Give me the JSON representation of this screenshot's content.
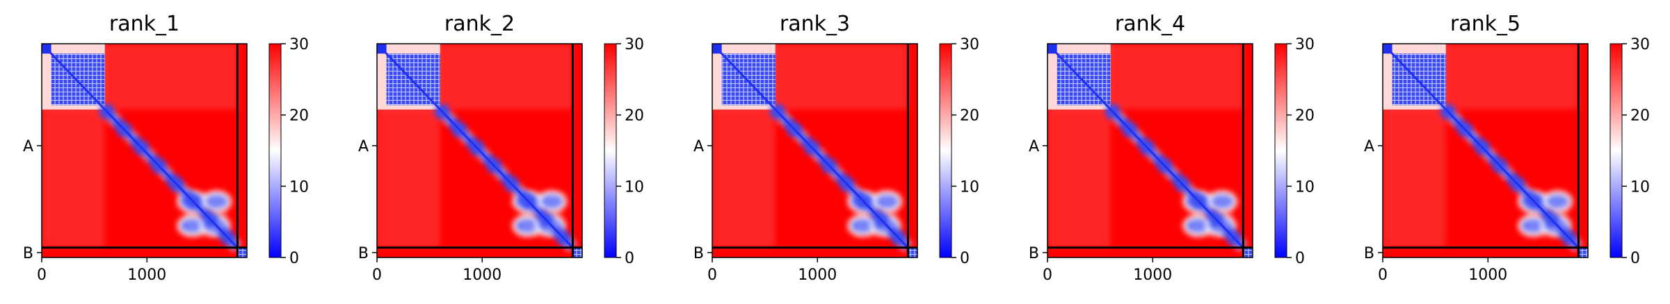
{
  "figure": {
    "colors": {
      "low": "#0000ff",
      "mid": "#ffffff",
      "high": "#ff0000",
      "frame": "#000000",
      "chain_separator": "#000000"
    },
    "colormap": "bwr"
  },
  "chart_data": [
    {
      "type": "heatmap",
      "title": "rank_1",
      "x_ticks": [
        0,
        1000
      ],
      "x_tick_labels": [
        "0",
        "1000"
      ],
      "y_tick_labels": [
        "A",
        "B"
      ],
      "axis_range": [
        0,
        1950
      ],
      "chain_boundary": 1860,
      "chain_label_positions": [
        930,
        1905
      ],
      "colorbar": {
        "ticks": [
          0,
          10,
          20,
          30
        ],
        "tick_labels": [
          "0",
          "10",
          "20",
          "30"
        ],
        "vmin": 0,
        "vmax": 30
      },
      "blocks": [
        {
          "range": [
            0,
            600
          ],
          "value": 6,
          "note": "low-error domain"
        },
        {
          "range": [
            600,
            1850
          ],
          "value": 4,
          "note": "diagonal band"
        },
        {
          "range": [
            1400,
            1750
          ],
          "value": 8,
          "note": "cross-shaped low-error region"
        },
        {
          "range": [
            1860,
            1950
          ],
          "value": 5,
          "note": "chain B self block"
        }
      ]
    },
    {
      "type": "heatmap",
      "title": "rank_2",
      "x_ticks": [
        0,
        1000
      ],
      "x_tick_labels": [
        "0",
        "1000"
      ],
      "y_tick_labels": [
        "A",
        "B"
      ],
      "axis_range": [
        0,
        1950
      ],
      "chain_boundary": 1860,
      "chain_label_positions": [
        930,
        1905
      ],
      "colorbar": {
        "ticks": [
          0,
          10,
          20,
          30
        ],
        "tick_labels": [
          "0",
          "10",
          "20",
          "30"
        ],
        "vmin": 0,
        "vmax": 30
      },
      "blocks": [
        {
          "range": [
            0,
            600
          ],
          "value": 6
        },
        {
          "range": [
            600,
            1850
          ],
          "value": 4
        },
        {
          "range": [
            1400,
            1750
          ],
          "value": 8
        },
        {
          "range": [
            1860,
            1950
          ],
          "value": 5
        }
      ]
    },
    {
      "type": "heatmap",
      "title": "rank_3",
      "x_ticks": [
        0,
        1000
      ],
      "x_tick_labels": [
        "0",
        "1000"
      ],
      "y_tick_labels": [
        "A",
        "B"
      ],
      "axis_range": [
        0,
        1950
      ],
      "chain_boundary": 1860,
      "chain_label_positions": [
        930,
        1905
      ],
      "colorbar": {
        "ticks": [
          0,
          10,
          20,
          30
        ],
        "tick_labels": [
          "0",
          "10",
          "20",
          "30"
        ],
        "vmin": 0,
        "vmax": 30
      },
      "blocks": [
        {
          "range": [
            0,
            600
          ],
          "value": 6
        },
        {
          "range": [
            600,
            1850
          ],
          "value": 4
        },
        {
          "range": [
            1400,
            1750
          ],
          "value": 8
        },
        {
          "range": [
            1860,
            1950
          ],
          "value": 5
        }
      ]
    },
    {
      "type": "heatmap",
      "title": "rank_4",
      "x_ticks": [
        0,
        1000
      ],
      "x_tick_labels": [
        "0",
        "1000"
      ],
      "y_tick_labels": [
        "A",
        "B"
      ],
      "axis_range": [
        0,
        1950
      ],
      "chain_boundary": 1860,
      "chain_label_positions": [
        930,
        1905
      ],
      "colorbar": {
        "ticks": [
          0,
          10,
          20,
          30
        ],
        "tick_labels": [
          "0",
          "10",
          "20",
          "30"
        ],
        "vmin": 0,
        "vmax": 30
      },
      "blocks": [
        {
          "range": [
            0,
            600
          ],
          "value": 6
        },
        {
          "range": [
            600,
            1850
          ],
          "value": 4
        },
        {
          "range": [
            1400,
            1750
          ],
          "value": 8
        },
        {
          "range": [
            1860,
            1950
          ],
          "value": 5
        }
      ]
    },
    {
      "type": "heatmap",
      "title": "rank_5",
      "x_ticks": [
        0,
        1000
      ],
      "x_tick_labels": [
        "0",
        "1000"
      ],
      "y_tick_labels": [
        "A",
        "B"
      ],
      "axis_range": [
        0,
        1950
      ],
      "chain_boundary": 1860,
      "chain_label_positions": [
        930,
        1905
      ],
      "colorbar": {
        "ticks": [
          0,
          10,
          20,
          30
        ],
        "tick_labels": [
          "0",
          "10",
          "20",
          "30"
        ],
        "vmin": 0,
        "vmax": 30
      },
      "blocks": [
        {
          "range": [
            0,
            600
          ],
          "value": 6
        },
        {
          "range": [
            600,
            1850
          ],
          "value": 4
        },
        {
          "range": [
            1400,
            1750
          ],
          "value": 8
        },
        {
          "range": [
            1860,
            1950
          ],
          "value": 5
        }
      ]
    }
  ]
}
